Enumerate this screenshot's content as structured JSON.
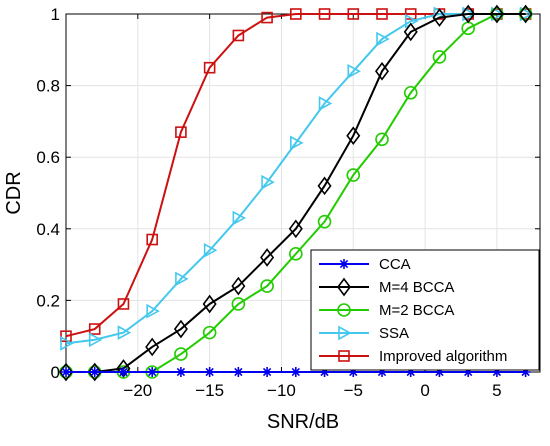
{
  "chart_data": {
    "type": "line",
    "xlabel": "SNR/dB",
    "ylabel": "CDR",
    "xlim": [
      -25,
      8
    ],
    "ylim": [
      0,
      1
    ],
    "x_ticks": [
      -20,
      -15,
      -10,
      -5,
      0,
      5
    ],
    "y_ticks": [
      0,
      0.2,
      0.4,
      0.6,
      0.8,
      1
    ],
    "x_tick_labels": [
      "−20",
      "−15",
      "−10",
      "−5",
      "0",
      "5"
    ],
    "y_tick_labels": [
      "0",
      "0.2",
      "0.4",
      "0.6",
      "0.8",
      "1"
    ],
    "grid": true,
    "legend_position": "bottom-right",
    "x": [
      -25,
      -23,
      -21,
      -19,
      -17,
      -15,
      -13,
      -11,
      -9,
      -7,
      -5,
      -3,
      -1,
      1,
      3,
      5,
      7
    ],
    "series": [
      {
        "name": "CCA",
        "color": "#0000ee",
        "marker": "star",
        "values": [
          0,
          0,
          0,
          0,
          0,
          0,
          0,
          0,
          0,
          0,
          0,
          0,
          0,
          0,
          0,
          0,
          0
        ]
      },
      {
        "name": "M=4 BCCA",
        "color": "#000000",
        "marker": "diamond",
        "values": [
          0,
          0,
          0.01,
          0.07,
          0.12,
          0.19,
          0.24,
          0.32,
          0.4,
          0.52,
          0.66,
          0.84,
          0.95,
          0.99,
          1.0,
          1.0,
          1.0
        ]
      },
      {
        "name": "M=2 BCCA",
        "color": "#22cc00",
        "marker": "circle",
        "values": [
          0,
          0,
          0,
          0,
          0.05,
          0.11,
          0.19,
          0.24,
          0.33,
          0.42,
          0.55,
          0.65,
          0.78,
          0.88,
          0.96,
          1.0,
          1.0
        ]
      },
      {
        "name": "SSA",
        "color": "#44c8ee",
        "marker": "triangle-right",
        "values": [
          0.08,
          0.09,
          0.11,
          0.17,
          0.26,
          0.34,
          0.43,
          0.53,
          0.64,
          0.75,
          0.84,
          0.93,
          0.98,
          1.0,
          1.0,
          1.0,
          1.0
        ]
      },
      {
        "name": "Improved algorithm",
        "color": "#cc1111",
        "marker": "square",
        "values": [
          0.1,
          0.12,
          0.19,
          0.37,
          0.67,
          0.85,
          0.94,
          0.99,
          1.0,
          1.0,
          1.0,
          1.0,
          1.0,
          1.0,
          1.0,
          1.0,
          1.0
        ]
      }
    ]
  }
}
